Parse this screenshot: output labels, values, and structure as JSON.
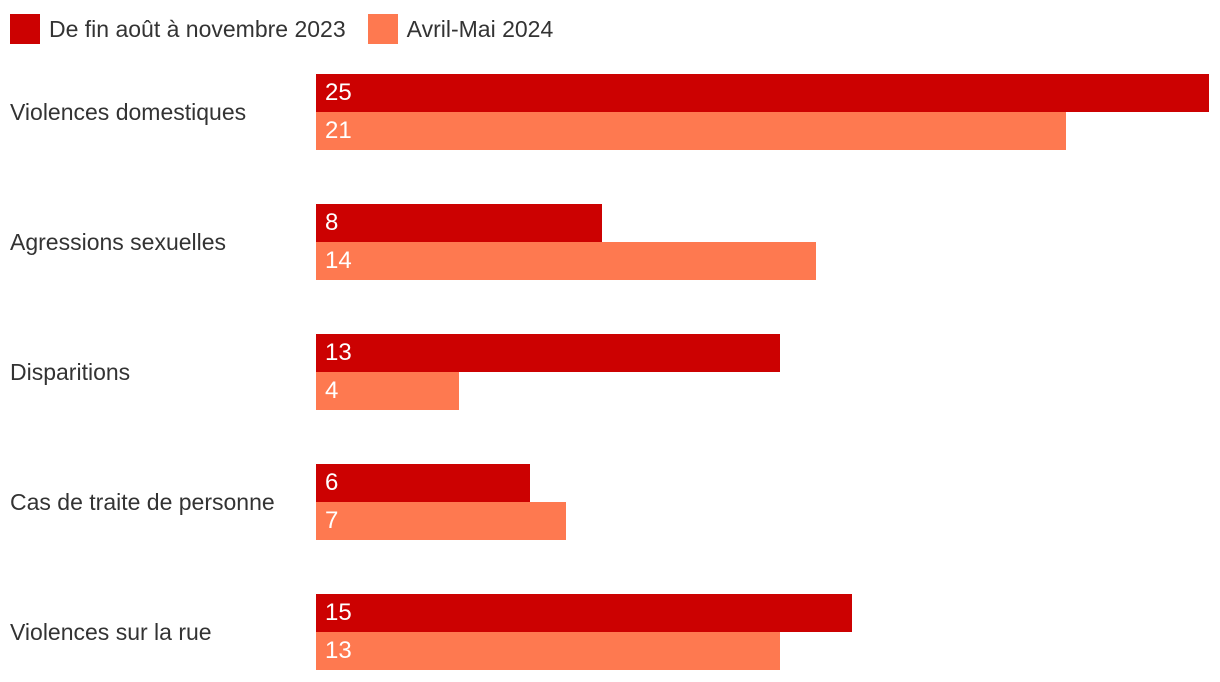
{
  "chart_data": {
    "type": "bar",
    "orientation": "horizontal",
    "title": "",
    "xlabel": "",
    "ylabel": "",
    "xlim": [
      0,
      25
    ],
    "grid": false,
    "legend_position": "top-left",
    "value_labels": "inside-start",
    "categories": [
      "Violences domestiques",
      "Agressions sexuelles",
      "Disparitions",
      "Cas de traite de personne",
      "Violences sur la rue"
    ],
    "series": [
      {
        "name": "De fin août à novembre 2023",
        "color": "#cc0101",
        "values": [
          25,
          8,
          13,
          6,
          15
        ]
      },
      {
        "name": "Avril-Mai 2024",
        "color": "#fe7950",
        "values": [
          21,
          14,
          4,
          7,
          13
        ]
      }
    ]
  },
  "colors": {
    "series_2023": "#cc0101",
    "series_2024": "#fe7950",
    "label_text": "#333333",
    "value_text": "#ffffff",
    "background": "#ffffff"
  }
}
